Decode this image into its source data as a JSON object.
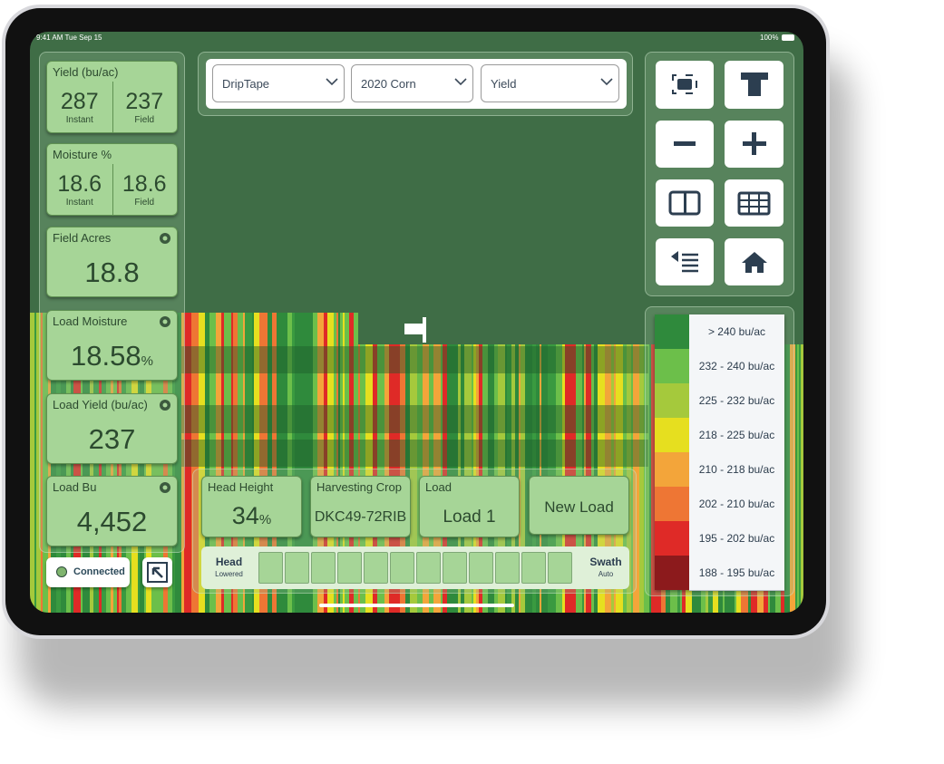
{
  "status_bar": {
    "time": "9:41 AM",
    "date": "Tue Sep 15",
    "battery": "100%"
  },
  "metrics": [
    {
      "title": "Yield (bu/ac)",
      "values": [
        {
          "value": "287",
          "label": "Instant"
        },
        {
          "value": "237",
          "label": "Field"
        }
      ]
    },
    {
      "title": "Moisture %",
      "values": [
        {
          "value": "18.6",
          "label": "Instant"
        },
        {
          "value": "18.6",
          "label": "Field"
        }
      ]
    },
    {
      "title": "Field Acres",
      "value": "18.8"
    },
    {
      "title": "Load Moisture",
      "value": "18.58",
      "unit": "%"
    },
    {
      "title": "Load Yield (bu/ac)",
      "value": "237"
    },
    {
      "title": "Load Bu",
      "value": "4,452"
    }
  ],
  "connection": "Connected",
  "dropdowns": [
    "DripTape",
    "2020 Corn",
    "Yield"
  ],
  "bottom_panel": {
    "head_height": {
      "title": "Head Height",
      "value": "34",
      "unit": "%"
    },
    "crop": {
      "title": "Harvesting Crop",
      "value": "DKC49-72RIB"
    },
    "load": {
      "title": "Load",
      "value": "Load 1"
    },
    "new_load": "New Load",
    "head": {
      "label": "Head",
      "status": "Lowered"
    },
    "swath": {
      "label": "Swath",
      "status": "Auto"
    }
  },
  "legend": [
    {
      "label": "> 240 bu/ac",
      "color": "#2f8a3c"
    },
    {
      "label": "232 - 240 bu/ac",
      "color": "#6cbf4a"
    },
    {
      "label": "225 - 232 bu/ac",
      "color": "#a5c93c"
    },
    {
      "label": "218 - 225 bu/ac",
      "color": "#e6df1f"
    },
    {
      "label": "210 - 218 bu/ac",
      "color": "#f3a53a"
    },
    {
      "label": "202 - 210 bu/ac",
      "color": "#ee7634"
    },
    {
      "label": "195 - 202 bu/ac",
      "color": "#df2a27"
    },
    {
      "label": "188 - 195 bu/ac",
      "color": "#8c1a1c"
    }
  ]
}
